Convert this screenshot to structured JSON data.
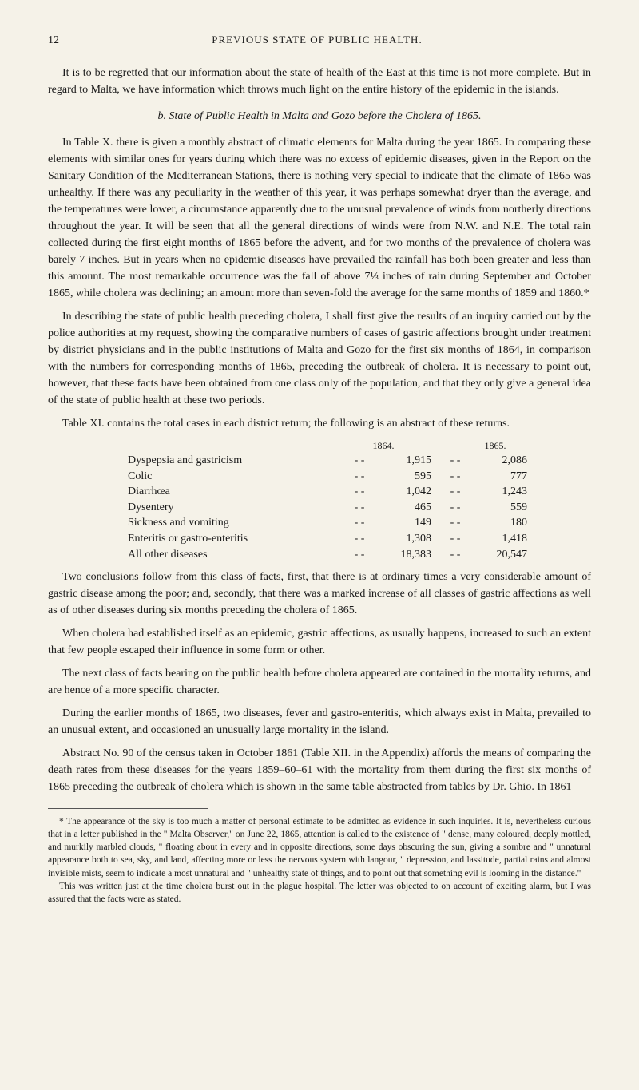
{
  "page_number": "12",
  "header_title": "PREVIOUS STATE OF PUBLIC HEALTH.",
  "para1": "It is to be regretted that our information about the state of health of the East at this time is not more complete. But in regard to Malta, we have information which throws much light on the entire history of the epidemic in the islands.",
  "subheading_b": "b. State of Public Health in Malta and Gozo before the Cholera of 1865.",
  "para2": "In Table X. there is given a monthly abstract of climatic elements for Malta during the year 1865. In comparing these elements with similar ones for years during which there was no excess of epidemic diseases, given in the Report on the Sanitary Condition of the Mediterranean Stations, there is nothing very special to indicate that the climate of 1865 was unhealthy. If there was any peculiarity in the weather of this year, it was perhaps somewhat dryer than the average, and the temperatures were lower, a circumstance apparently due to the unusual prevalence of winds from northerly directions throughout the year. It will be seen that all the general directions of winds were from N.W. and N.E. The total rain collected during the first eight months of 1865 before the advent, and for two months of the prevalence of cholera was barely 7 inches. But in years when no epidemic diseases have prevailed the rainfall has both been greater and less than this amount. The most remarkable occurrence was the fall of above 7⅓ inches of rain during September and October 1865, while cholera was declining; an amount more than seven-fold the average for the same months of 1859 and 1860.*",
  "para3": "In describing the state of public health preceding cholera, I shall first give the results of an inquiry carried out by the police authorities at my request, showing the comparative numbers of cases of gastric affections brought under treatment by district physicians and in the public institutions of Malta and Gozo for the first six months of 1864, in comparison with the numbers for corresponding months of 1865, preceding the outbreak of cholera. It is necessary to point out, however, that these facts have been obtained from one class only of the population, and that they only give a general idea of the state of public health at these two periods.",
  "para4": "Table XI. contains the total cases in each district return; the following is an abstract of these returns.",
  "table": {
    "year1": "1864.",
    "year2": "1865.",
    "rows": [
      {
        "label": "Dyspepsia and gastricism",
        "v1": "1,915",
        "v2": "2,086"
      },
      {
        "label": "Colic",
        "v1": "595",
        "v2": "777"
      },
      {
        "label": "Diarrhœa",
        "v1": "1,042",
        "v2": "1,243"
      },
      {
        "label": "Dysentery",
        "v1": "465",
        "v2": "559"
      },
      {
        "label": "Sickness and vomiting",
        "v1": "149",
        "v2": "180"
      },
      {
        "label": "Enteritis or gastro-enteritis",
        "v1": "1,308",
        "v2": "1,418"
      },
      {
        "label": "All other diseases",
        "v1": "18,383",
        "v2": "20,547"
      }
    ]
  },
  "para5": "Two conclusions follow from this class of facts, first, that there is at ordinary times a very considerable amount of gastric disease among the poor; and, secondly, that there was a marked increase of all classes of gastric affections as well as of other diseases during six months preceding the cholera of 1865.",
  "para6": "When cholera had established itself as an epidemic, gastric affections, as usually happens, increased to such an extent that few people escaped their influence in some form or other.",
  "para7": "The next class of facts bearing on the public health before cholera appeared are contained in the mortality returns, and are hence of a more specific character.",
  "para8": "During the earlier months of 1865, two diseases, fever and gastro-enteritis, which always exist in Malta, prevailed to an unusual extent, and occasioned an unusually large mortality in the island.",
  "para9": "Abstract No. 90 of the census taken in October 1861 (Table XII. in the Appendix) affords the means of comparing the death rates from these diseases for the years 1859–60–61 with the mortality from them during the first six months of 1865 preceding the outbreak of cholera which is shown in the same table abstracted from tables by Dr. Ghio. In 1861",
  "footnote1": "* The appearance of the sky is too much a matter of personal estimate to be admitted as evidence in such inquiries. It is, nevertheless curious that in a letter published in the \" Malta Observer,\" on June 22, 1865, attention is called to the existence of \" dense, many coloured, deeply mottled, and murkily marbled clouds, \" floating about in every and in opposite directions, some days obscuring the sun, giving a sombre and \" unnatural appearance both to sea, sky, and land, affecting more or less the nervous system with langour, \" depression, and lassitude, partial rains and almost invisible mists, seem to indicate a most unnatural and \" unhealthy state of things, and to point out that something evil is looming in the distance.\"",
  "footnote2": "This was written just at the time cholera burst out in the plague hospital. The letter was objected to on account of exciting alarm, but I was assured that the facts were as stated."
}
